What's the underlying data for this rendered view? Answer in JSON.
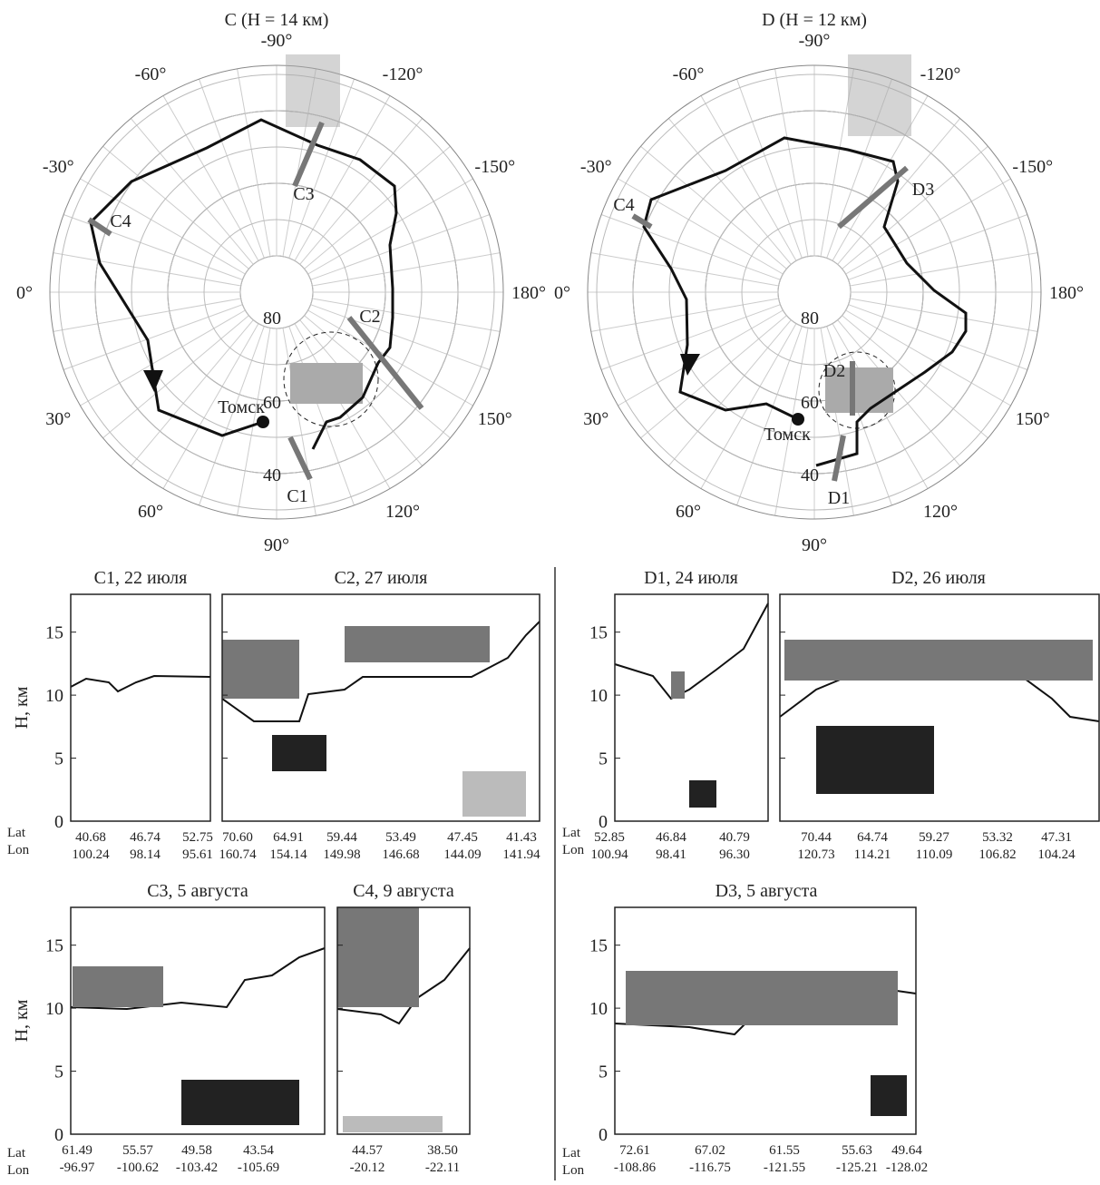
{
  "maps": [
    {
      "title": "C (H = 14 км)",
      "lon_labels": [
        {
          "value": -90,
          "label": "-90°"
        },
        {
          "value": -60,
          "label": "-60°"
        },
        {
          "value": -120,
          "label": "-120°"
        },
        {
          "value": -30,
          "label": "-30°"
        },
        {
          "value": -150,
          "label": "-150°"
        },
        {
          "value": 0,
          "label": "0°"
        },
        {
          "value": 180,
          "label": "180°"
        },
        {
          "value": 30,
          "label": "30°"
        },
        {
          "value": 150,
          "label": "150°"
        },
        {
          "value": 60,
          "label": "60°"
        },
        {
          "value": 120,
          "label": "120°"
        },
        {
          "value": 90,
          "label": "90°"
        }
      ],
      "lat_circles": [
        80,
        60,
        40
      ],
      "segments": [
        "C1",
        "C2",
        "C3",
        "C4"
      ],
      "city": "Томск"
    },
    {
      "title": "D (H = 12 км)",
      "lon_labels": [
        {
          "value": -90,
          "label": "-90°"
        },
        {
          "value": -60,
          "label": "-60°"
        },
        {
          "value": -120,
          "label": "-120°"
        },
        {
          "value": -30,
          "label": "-30°"
        },
        {
          "value": -150,
          "label": "-150°"
        },
        {
          "value": 0,
          "label": "0°"
        },
        {
          "value": 180,
          "label": "180°"
        },
        {
          "value": 30,
          "label": "30°"
        },
        {
          "value": 150,
          "label": "150°"
        },
        {
          "value": 60,
          "label": "60°"
        },
        {
          "value": 120,
          "label": "120°"
        },
        {
          "value": 90,
          "label": "90°"
        }
      ],
      "lat_circles": [
        80,
        60,
        40
      ],
      "segments": [
        "D1",
        "D2",
        "D3",
        "C4"
      ],
      "city": "Томск"
    }
  ],
  "y_label": "H, км",
  "ylim": [
    0,
    18
  ],
  "yticks": [
    0,
    5,
    10,
    15
  ],
  "row_labels": [
    "Lat",
    "Lon"
  ],
  "panels": [
    {
      "title": "C1, 22 июля",
      "lat": [
        "40.68",
        "46.74",
        "52.75"
      ],
      "lon": [
        "100.24",
        "98.14",
        "95.61"
      ]
    },
    {
      "title": "C2, 27 июля",
      "lat": [
        "70.60",
        "64.91",
        "59.44",
        "53.49",
        "47.45",
        "41.43"
      ],
      "lon": [
        "160.74",
        "154.14",
        "149.98",
        "146.68",
        "144.09",
        "141.94"
      ]
    },
    {
      "title": "D1, 24 июля",
      "lat": [
        "52.85",
        "46.84",
        "40.79"
      ],
      "lon": [
        "100.94",
        "98.41",
        "96.30"
      ]
    },
    {
      "title": "D2, 26 июля",
      "lat": [
        "70.44",
        "64.74",
        "59.27",
        "53.32",
        "47.31"
      ],
      "lon": [
        "120.73",
        "114.21",
        "110.09",
        "106.82",
        "104.24"
      ]
    },
    {
      "title": "C3, 5 августа",
      "lat": [
        "61.49",
        "55.57",
        "49.58",
        "43.54"
      ],
      "lon": [
        "-96.97",
        "-100.62",
        "-103.42",
        "-105.69"
      ]
    },
    {
      "title": "C4, 9 августа",
      "lat": [
        "44.57",
        "38.50"
      ],
      "lon": [
        "-20.12",
        "-22.11"
      ]
    },
    {
      "title": "D3, 5 августа",
      "lat": [
        "72.61",
        "67.02",
        "61.55",
        "55.63",
        "49.64"
      ],
      "lon": [
        "-108.86",
        "-116.75",
        "-121.55",
        "-125.21",
        "-128.02"
      ]
    }
  ]
}
